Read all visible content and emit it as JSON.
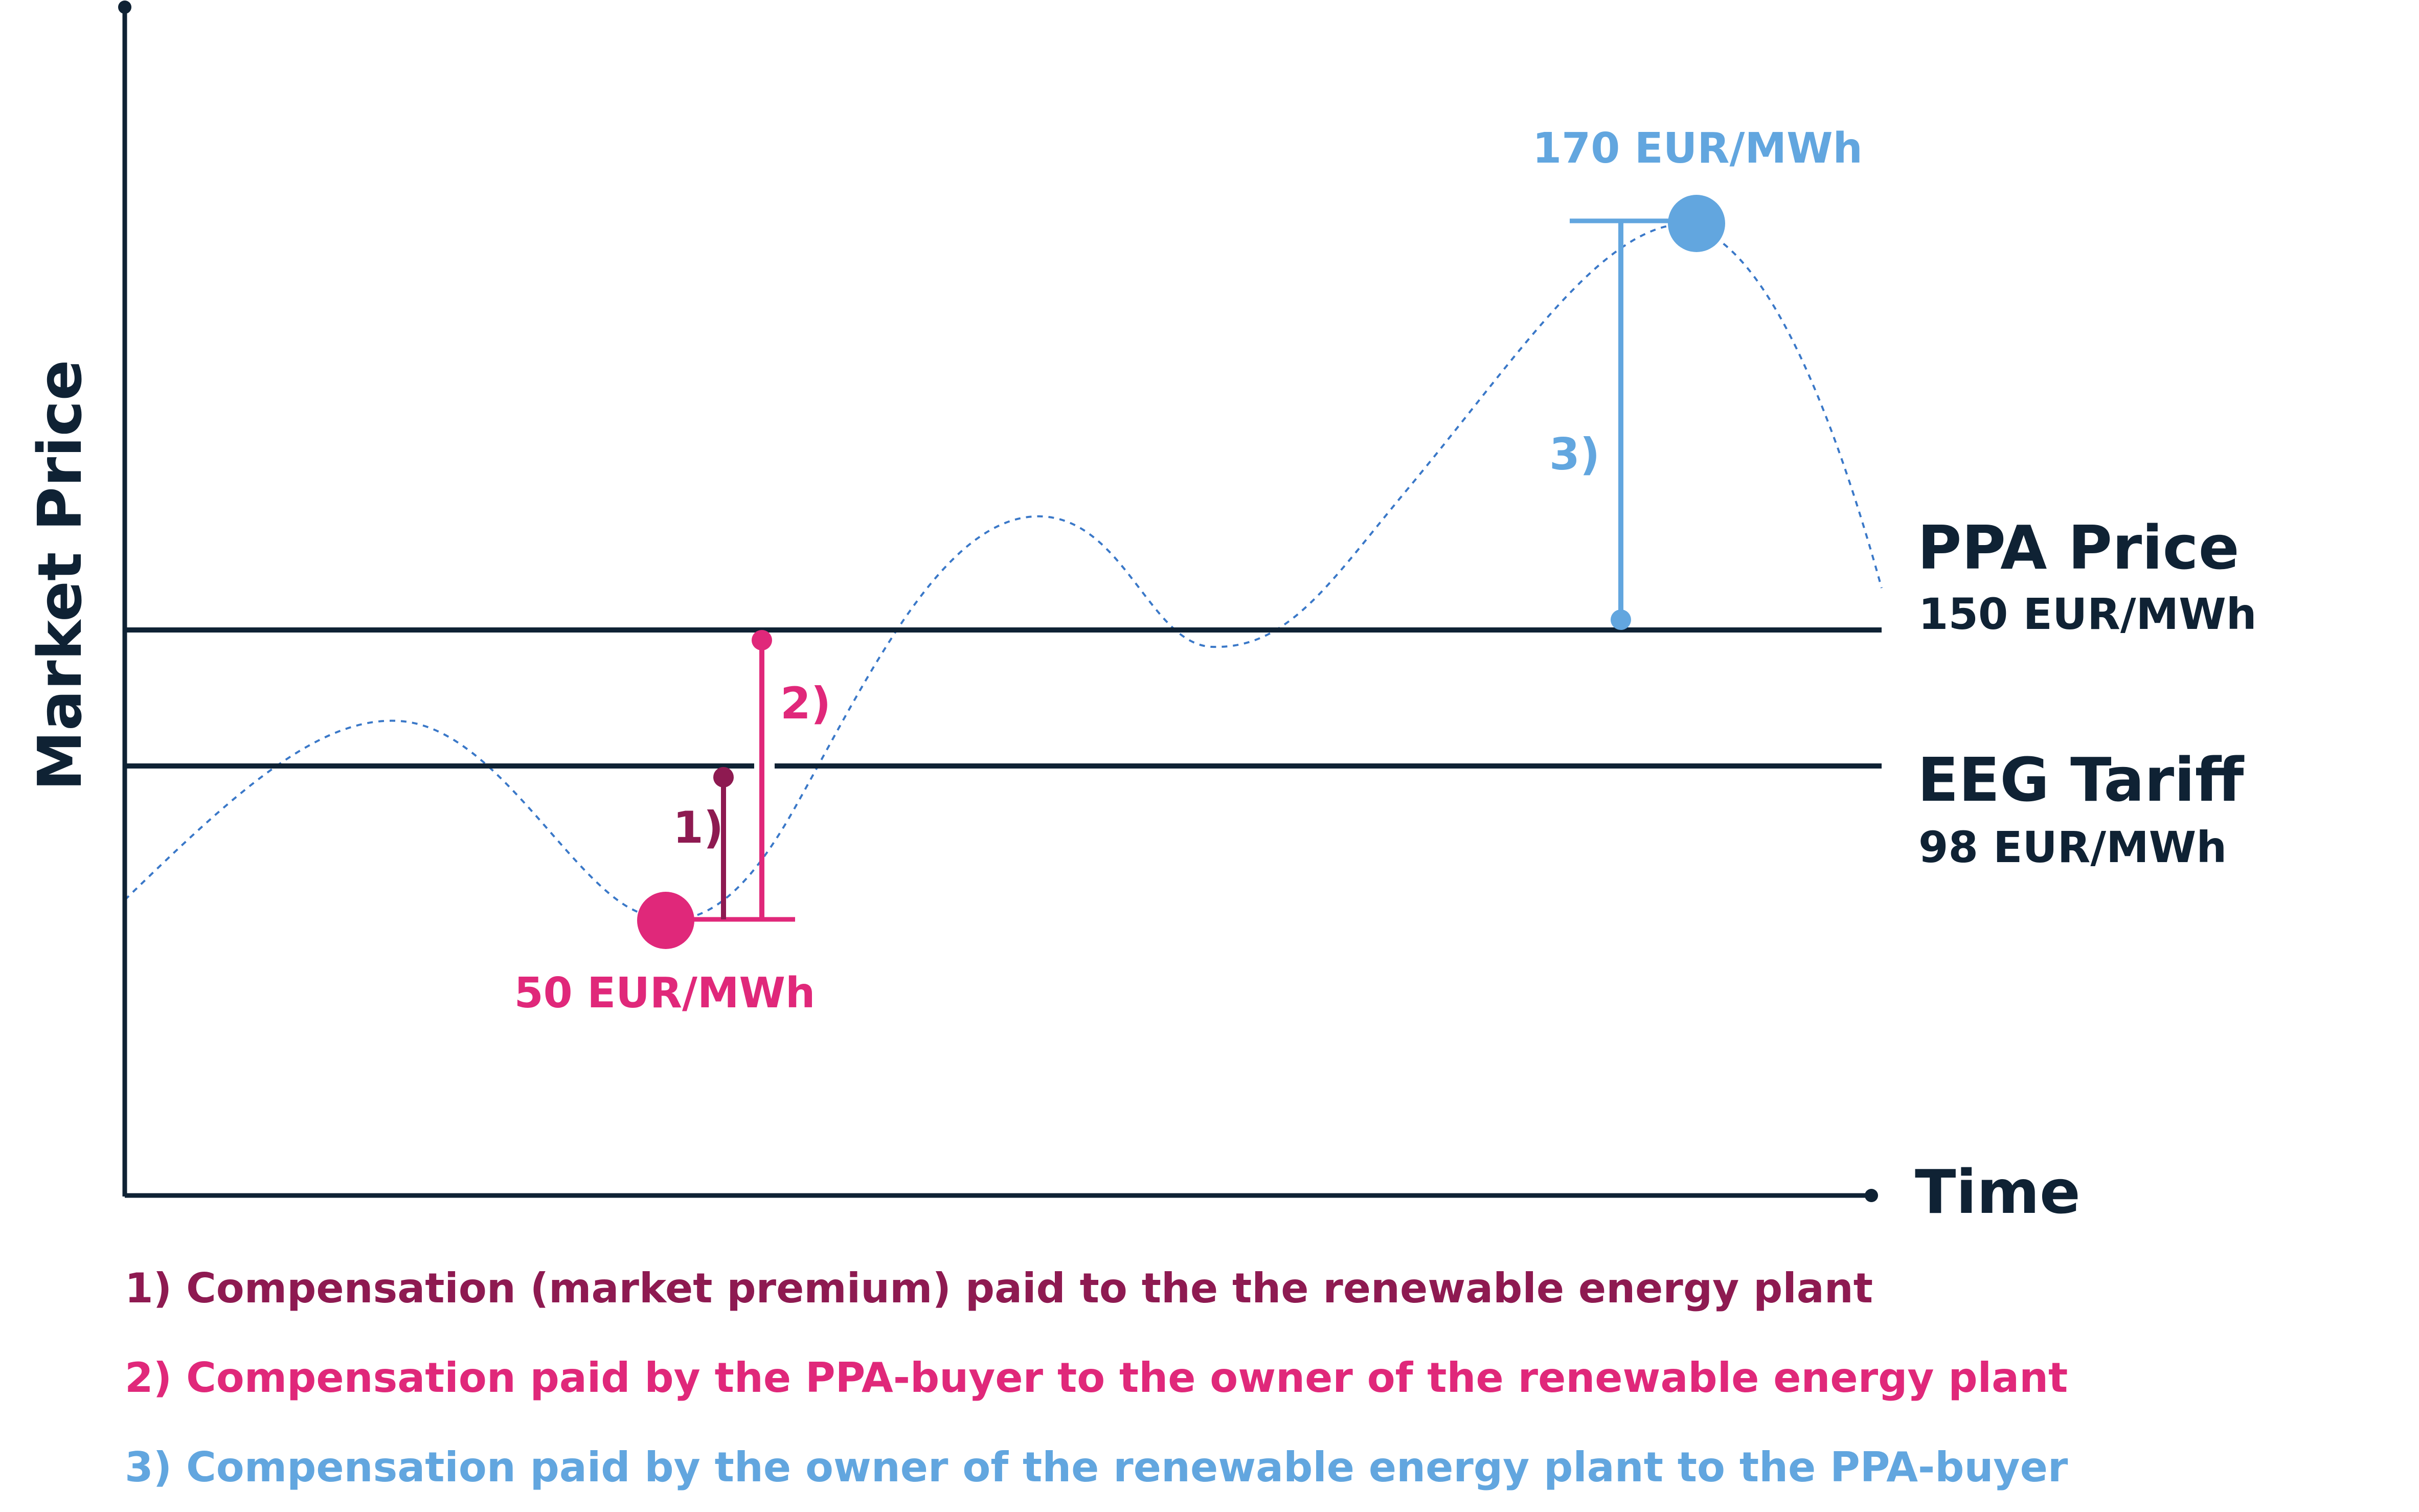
{
  "axes": {
    "y_label": "Market Price",
    "x_label": "Time"
  },
  "reference_lines": {
    "ppa": {
      "title": "PPA Price",
      "value_label": "150 EUR/MWh",
      "value": 150
    },
    "eeg": {
      "title": "EEG Tariff",
      "value_label": "98 EUR/MWh",
      "value": 98
    }
  },
  "points": {
    "low": {
      "label": "50 EUR/MWh",
      "value": 50
    },
    "high": {
      "label": "170 EUR/MWh",
      "value": 170
    }
  },
  "markers": {
    "m1": "1)",
    "m2": "2)",
    "m3": "3)"
  },
  "legend": [
    "1) Compensation (market premium) paid to the the renewable energy plant",
    "2) Compensation paid by the PPA-buyer to the owner of the renewable energy plant",
    "3) Compensation paid by the owner of the renewable energy plant to the PPA-buyer"
  ],
  "colors": {
    "axis": "#0f2234",
    "dark_magenta": "#8e1a51",
    "magenta": "#e0287a",
    "blue": "#62a6df",
    "curve": "#3a78c8"
  }
}
